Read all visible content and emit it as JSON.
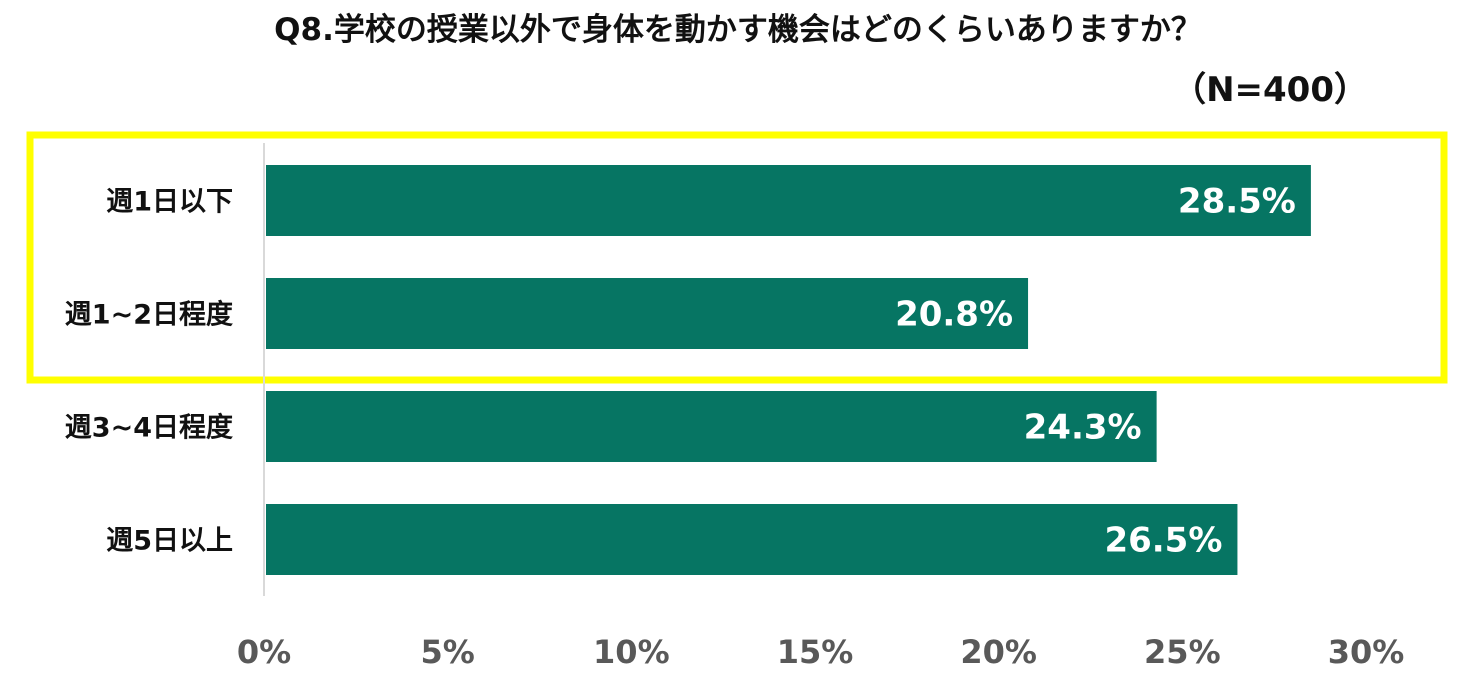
{
  "title": "Q8.学校の授業以外で身体を動かす機会はどのくらいありますか？",
  "sample_size": "（N=400）",
  "colors": {
    "bar": "#067563",
    "highlight": "#ffff00",
    "axis": "#d9d9d9",
    "tick_label": "#595959"
  },
  "chart_data": {
    "type": "bar",
    "orientation": "horizontal",
    "categories": [
      "週1日以下",
      "週1~2日程度",
      "週3~4日程度",
      "週5日以上"
    ],
    "values": [
      28.5,
      20.8,
      24.3,
      26.5
    ],
    "value_labels": [
      "28.5%",
      "20.8%",
      "24.3%",
      "26.5%"
    ],
    "xlim": [
      0,
      30
    ],
    "xticks": [
      0,
      5,
      10,
      15,
      20,
      25,
      30
    ],
    "xtick_labels": [
      "0%",
      "5%",
      "10%",
      "15%",
      "20%",
      "25%",
      "30%"
    ],
    "highlighted_categories": [
      "週1日以下",
      "週1~2日程度"
    ],
    "grid": false
  }
}
